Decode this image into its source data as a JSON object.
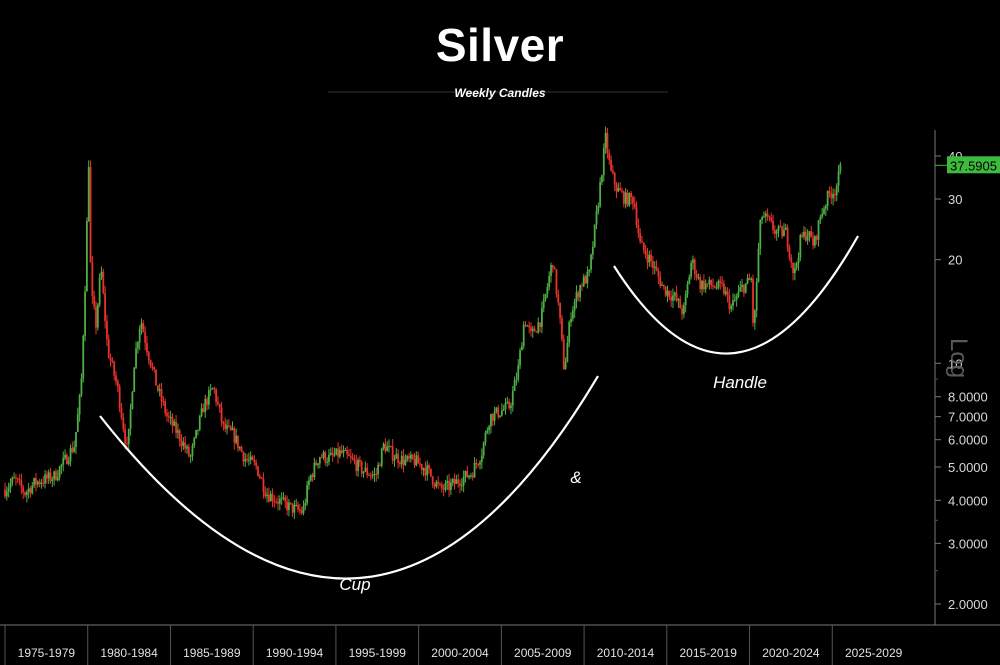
{
  "chart_data": {
    "type": "candlestick",
    "title": "Silver",
    "subtitle": "Weekly Candles",
    "y_scale": "log",
    "y_scale_label": "Log",
    "ylim": [
      1.8,
      45
    ],
    "x_period_labels": [
      "1975-1979",
      "1980-1984",
      "1985-1989",
      "1990-1994",
      "1995-1999",
      "2000-2004",
      "2005-2009",
      "2010-2014",
      "2015-2019",
      "2020-2024",
      "2025-2029"
    ],
    "y_ticks": [
      {
        "value": 40,
        "label": "40"
      },
      {
        "value": 30,
        "label": "30"
      },
      {
        "value": 20,
        "label": "20"
      },
      {
        "value": 10,
        "label": "10"
      },
      {
        "value": 8,
        "label": "8.0000"
      },
      {
        "value": 7,
        "label": "7.0000"
      },
      {
        "value": 6,
        "label": "6.0000"
      },
      {
        "value": 5,
        "label": "5.0000"
      },
      {
        "value": 4,
        "label": "4.0000"
      },
      {
        "value": 3,
        "label": "3.0000"
      },
      {
        "value": 2,
        "label": "2.0000"
      }
    ],
    "last_price": "37.5905",
    "price_path": [
      [
        1975.0,
        4.3
      ],
      [
        1975.6,
        4.6
      ],
      [
        1976.2,
        4.2
      ],
      [
        1976.8,
        4.5
      ],
      [
        1977.4,
        4.6
      ],
      [
        1978.0,
        4.7
      ],
      [
        1978.6,
        5.2
      ],
      [
        1979.2,
        5.8
      ],
      [
        1979.6,
        8.5
      ],
      [
        1979.9,
        20
      ],
      [
        1980.05,
        41
      ],
      [
        1980.2,
        16
      ],
      [
        1980.5,
        13
      ],
      [
        1980.8,
        19
      ],
      [
        1981.2,
        11
      ],
      [
        1981.8,
        8.5
      ],
      [
        1982.4,
        5.5
      ],
      [
        1982.8,
        10
      ],
      [
        1983.2,
        13.5
      ],
      [
        1983.6,
        11
      ],
      [
        1984.2,
        8.5
      ],
      [
        1984.8,
        7
      ],
      [
        1985.5,
        6.2
      ],
      [
        1986.2,
        5.3
      ],
      [
        1987.0,
        7.5
      ],
      [
        1987.6,
        8.5
      ],
      [
        1988.2,
        6.5
      ],
      [
        1988.8,
        6.2
      ],
      [
        1989.5,
        5.3
      ],
      [
        1990.2,
        5.0
      ],
      [
        1990.8,
        4.2
      ],
      [
        1991.5,
        4.0
      ],
      [
        1992.3,
        3.8
      ],
      [
        1993.0,
        3.7
      ],
      [
        1993.4,
        4.6
      ],
      [
        1994.0,
        5.4
      ],
      [
        1994.6,
        5.3
      ],
      [
        1995.3,
        5.5
      ],
      [
        1996.0,
        5.2
      ],
      [
        1996.6,
        4.9
      ],
      [
        1997.4,
        4.7
      ],
      [
        1997.9,
        5.8
      ],
      [
        1998.5,
        5.4
      ],
      [
        1999.2,
        5.2
      ],
      [
        1999.8,
        5.2
      ],
      [
        2000.5,
        4.9
      ],
      [
        2001.3,
        4.3
      ],
      [
        2001.9,
        4.4
      ],
      [
        2002.5,
        4.6
      ],
      [
        2003.2,
        4.8
      ],
      [
        2003.8,
        5.5
      ],
      [
        2004.3,
        7.0
      ],
      [
        2004.8,
        7.2
      ],
      [
        2005.5,
        7.5
      ],
      [
        2006.0,
        9.5
      ],
      [
        2006.4,
        13.5
      ],
      [
        2006.8,
        12
      ],
      [
        2007.4,
        13.5
      ],
      [
        2008.1,
        20
      ],
      [
        2008.5,
        14
      ],
      [
        2008.8,
        9.5
      ],
      [
        2009.2,
        14
      ],
      [
        2009.8,
        17
      ],
      [
        2010.3,
        18
      ],
      [
        2010.8,
        28
      ],
      [
        2011.3,
        45
      ],
      [
        2011.6,
        36
      ],
      [
        2012.0,
        32
      ],
      [
        2012.5,
        30
      ],
      [
        2013.0,
        30
      ],
      [
        2013.4,
        22
      ],
      [
        2014.0,
        20
      ],
      [
        2014.8,
        16.5
      ],
      [
        2015.5,
        15.5
      ],
      [
        2016.0,
        14
      ],
      [
        2016.5,
        20
      ],
      [
        2017.0,
        17
      ],
      [
        2017.8,
        16.8
      ],
      [
        2018.4,
        16.5
      ],
      [
        2018.9,
        14.5
      ],
      [
        2019.5,
        16.5
      ],
      [
        2020.1,
        17.5
      ],
      [
        2020.25,
        12
      ],
      [
        2020.5,
        20
      ],
      [
        2020.7,
        27
      ],
      [
        2021.1,
        26
      ],
      [
        2021.6,
        24
      ],
      [
        2022.2,
        24
      ],
      [
        2022.7,
        18
      ],
      [
        2023.1,
        23
      ],
      [
        2023.5,
        24
      ],
      [
        2023.9,
        22
      ],
      [
        2024.3,
        27
      ],
      [
        2024.8,
        31
      ],
      [
        2025.2,
        32
      ],
      [
        2025.55,
        37.59
      ]
    ]
  },
  "annotations": {
    "cup_label": "Cup",
    "amp_label": "&",
    "handle_label": "Handle"
  },
  "colors": {
    "background": "#000000",
    "candle_up": "#4fae45",
    "candle_down": "#e8322b",
    "price_tag": "#3dbb3d",
    "curve": "#ffffff",
    "axis": "#777777"
  }
}
